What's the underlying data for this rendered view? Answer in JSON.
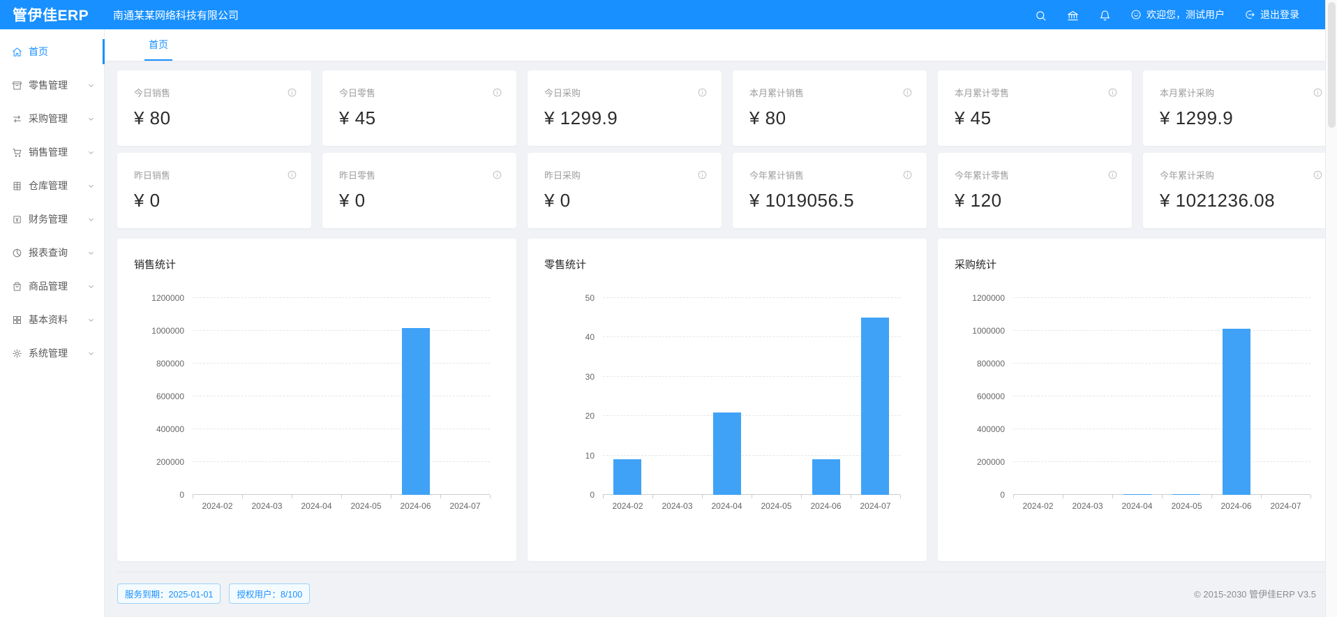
{
  "header": {
    "logo": "管伊佳ERP",
    "company": "南通某某网络科技有限公司",
    "welcome_text": "欢迎您，测试用户",
    "logout_text": "退出登录",
    "icons": [
      "search-icon",
      "bank-icon",
      "bell-icon"
    ]
  },
  "sidebar": {
    "items": [
      {
        "name": "home",
        "label": "首页",
        "icon": "home-icon",
        "active": true,
        "has_children": false
      },
      {
        "name": "retail",
        "label": "零售管理",
        "icon": "shop-icon",
        "active": false,
        "has_children": true
      },
      {
        "name": "purchase",
        "label": "采购管理",
        "icon": "swap-icon",
        "active": false,
        "has_children": true
      },
      {
        "name": "sales",
        "label": "销售管理",
        "icon": "cart-icon",
        "active": false,
        "has_children": true
      },
      {
        "name": "warehouse",
        "label": "仓库管理",
        "icon": "warehouse-icon",
        "active": false,
        "has_children": true
      },
      {
        "name": "finance",
        "label": "财务管理",
        "icon": "finance-icon",
        "active": false,
        "has_children": true
      },
      {
        "name": "reports",
        "label": "报表查询",
        "icon": "report-icon",
        "active": false,
        "has_children": true
      },
      {
        "name": "goods",
        "label": "商品管理",
        "icon": "goods-icon",
        "active": false,
        "has_children": true
      },
      {
        "name": "basic-data",
        "label": "基本资料",
        "icon": "grid-icon",
        "active": false,
        "has_children": true
      },
      {
        "name": "system",
        "label": "系统管理",
        "icon": "gear-icon",
        "active": false,
        "has_children": true
      }
    ]
  },
  "tabs": [
    {
      "name": "home",
      "label": "首页",
      "active": true
    }
  ],
  "stat_cards": [
    {
      "name": "today-sales",
      "label": "今日销售",
      "value": "¥ 80"
    },
    {
      "name": "today-retail",
      "label": "今日零售",
      "value": "¥ 45"
    },
    {
      "name": "today-purchase",
      "label": "今日采购",
      "value": "¥ 1299.9"
    },
    {
      "name": "month-sales",
      "label": "本月累计销售",
      "value": "¥ 80"
    },
    {
      "name": "month-retail",
      "label": "本月累计零售",
      "value": "¥ 45"
    },
    {
      "name": "month-purchase",
      "label": "本月累计采购",
      "value": "¥ 1299.9"
    },
    {
      "name": "yesterday-sales",
      "label": "昨日销售",
      "value": "¥ 0"
    },
    {
      "name": "yesterday-retail",
      "label": "昨日零售",
      "value": "¥ 0"
    },
    {
      "name": "yesterday-purchase",
      "label": "昨日采购",
      "value": "¥ 0"
    },
    {
      "name": "year-sales",
      "label": "今年累计销售",
      "value": "¥ 1019056.5"
    },
    {
      "name": "year-retail",
      "label": "今年累计零售",
      "value": "¥ 120"
    },
    {
      "name": "year-purchase",
      "label": "今年累计采购",
      "value": "¥ 1021236.08"
    }
  ],
  "chart_data": [
    {
      "name": "sales",
      "type": "bar",
      "title": "销售统计",
      "categories": [
        "2024-02",
        "2024-03",
        "2024-04",
        "2024-05",
        "2024-06",
        "2024-07"
      ],
      "values": [
        0,
        0,
        0,
        0,
        1019000,
        80
      ],
      "ylim": [
        0,
        1200000
      ],
      "ytick_step": 200000,
      "grid": true
    },
    {
      "name": "retail",
      "type": "bar",
      "title": "零售统计",
      "categories": [
        "2024-02",
        "2024-03",
        "2024-04",
        "2024-05",
        "2024-06",
        "2024-07"
      ],
      "values": [
        9,
        0,
        21,
        0,
        9,
        45
      ],
      "ylim": [
        0,
        50
      ],
      "ytick_step": 10,
      "grid": true
    },
    {
      "name": "purchase",
      "type": "bar",
      "title": "采购统计",
      "categories": [
        "2024-02",
        "2024-03",
        "2024-04",
        "2024-05",
        "2024-06",
        "2024-07"
      ],
      "values": [
        0,
        0,
        5000,
        2500,
        1012400,
        1300
      ],
      "ylim": [
        0,
        1200000
      ],
      "ytick_step": 200000,
      "grid": true
    }
  ],
  "footer": {
    "badges": [
      {
        "name": "service-expiry",
        "label": "服务到期：2025-01-01"
      },
      {
        "name": "licensed-users",
        "label": "授权用户：8/100"
      }
    ],
    "copyright": "© 2015-2030 管伊佳ERP V3.5"
  },
  "colors": {
    "header_bg": "#1890ff",
    "accent": "#1890ff",
    "bar": "#3fa2f7",
    "content_bg": "#f0f2f5"
  }
}
